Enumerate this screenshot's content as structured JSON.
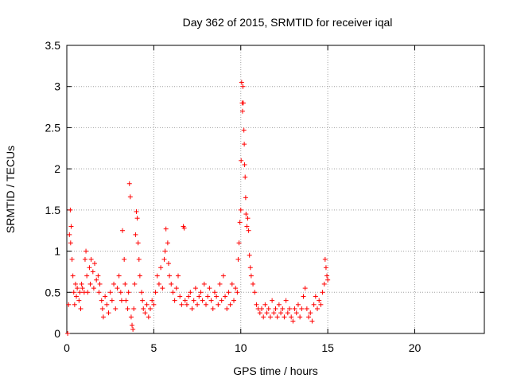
{
  "chart_data": {
    "type": "scatter",
    "title": "Day 362 of 2015, SRMTID for receiver iqal",
    "xlabel": "GPS time / hours",
    "ylabel": "SRMTID / TECUs",
    "xlim": [
      0,
      24
    ],
    "ylim": [
      0,
      3.5
    ],
    "xticks": [
      0,
      5,
      10,
      15,
      20
    ],
    "yticks": [
      0,
      0.5,
      1,
      1.5,
      2,
      2.5,
      3,
      3.5
    ],
    "grid": true,
    "marker": "+",
    "color": "#ff0000",
    "series": [
      {
        "name": "SRMTID",
        "points": [
          [
            0.05,
            0.0
          ],
          [
            0.1,
            0.35
          ],
          [
            0.15,
            1.2
          ],
          [
            0.2,
            1.5
          ],
          [
            0.22,
            1.1
          ],
          [
            0.25,
            1.3
          ],
          [
            0.3,
            0.9
          ],
          [
            0.35,
            0.7
          ],
          [
            0.4,
            0.5
          ],
          [
            0.45,
            0.35
          ],
          [
            0.5,
            0.6
          ],
          [
            0.55,
            0.45
          ],
          [
            0.6,
            0.55
          ],
          [
            0.7,
            0.4
          ],
          [
            0.75,
            0.5
          ],
          [
            0.8,
            0.3
          ],
          [
            0.85,
            0.6
          ],
          [
            0.9,
            0.55
          ],
          [
            1.0,
            0.5
          ],
          [
            1.05,
            0.9
          ],
          [
            1.1,
            1.0
          ],
          [
            1.15,
            0.7
          ],
          [
            1.2,
            0.5
          ],
          [
            1.3,
            0.8
          ],
          [
            1.35,
            0.6
          ],
          [
            1.4,
            0.9
          ],
          [
            1.5,
            0.75
          ],
          [
            1.55,
            0.55
          ],
          [
            1.6,
            0.85
          ],
          [
            1.7,
            0.65
          ],
          [
            1.8,
            0.7
          ],
          [
            1.85,
            0.5
          ],
          [
            1.9,
            0.6
          ],
          [
            2.0,
            0.4
          ],
          [
            2.05,
            0.3
          ],
          [
            2.1,
            0.2
          ],
          [
            2.2,
            0.45
          ],
          [
            2.3,
            0.35
          ],
          [
            2.4,
            0.25
          ],
          [
            2.5,
            0.5
          ],
          [
            2.6,
            0.4
          ],
          [
            2.7,
            0.6
          ],
          [
            2.8,
            0.3
          ],
          [
            2.9,
            0.55
          ],
          [
            3.0,
            0.7
          ],
          [
            3.1,
            0.5
          ],
          [
            3.15,
            0.4
          ],
          [
            3.2,
            1.25
          ],
          [
            3.3,
            0.9
          ],
          [
            3.35,
            0.6
          ],
          [
            3.4,
            0.4
          ],
          [
            3.5,
            0.3
          ],
          [
            3.55,
            0.5
          ],
          [
            3.6,
            1.82
          ],
          [
            3.65,
            1.66
          ],
          [
            3.7,
            0.2
          ],
          [
            3.75,
            0.1
          ],
          [
            3.8,
            0.05
          ],
          [
            3.85,
            0.3
          ],
          [
            3.9,
            0.6
          ],
          [
            3.95,
            1.2
          ],
          [
            4.0,
            1.48
          ],
          [
            4.05,
            1.4
          ],
          [
            4.1,
            1.1
          ],
          [
            4.15,
            0.9
          ],
          [
            4.2,
            0.7
          ],
          [
            4.3,
            0.5
          ],
          [
            4.35,
            0.4
          ],
          [
            4.4,
            0.3
          ],
          [
            4.5,
            0.25
          ],
          [
            4.6,
            0.35
          ],
          [
            4.7,
            0.2
          ],
          [
            4.8,
            0.3
          ],
          [
            4.9,
            0.4
          ],
          [
            5.0,
            0.35
          ],
          [
            5.1,
            0.5
          ],
          [
            5.2,
            0.7
          ],
          [
            5.3,
            0.6
          ],
          [
            5.4,
            0.8
          ],
          [
            5.5,
            0.55
          ],
          [
            5.6,
            0.9
          ],
          [
            5.65,
            1.0
          ],
          [
            5.7,
            1.27
          ],
          [
            5.8,
            1.1
          ],
          [
            5.85,
            0.85
          ],
          [
            5.9,
            0.7
          ],
          [
            6.0,
            0.6
          ],
          [
            6.1,
            0.5
          ],
          [
            6.2,
            0.4
          ],
          [
            6.3,
            0.55
          ],
          [
            6.4,
            0.7
          ],
          [
            6.5,
            0.45
          ],
          [
            6.6,
            0.35
          ],
          [
            6.7,
            1.3
          ],
          [
            6.75,
            1.28
          ],
          [
            6.8,
            0.4
          ],
          [
            6.9,
            0.35
          ],
          [
            7.0,
            0.45
          ],
          [
            7.1,
            0.5
          ],
          [
            7.2,
            0.3
          ],
          [
            7.3,
            0.4
          ],
          [
            7.4,
            0.55
          ],
          [
            7.5,
            0.35
          ],
          [
            7.6,
            0.45
          ],
          [
            7.7,
            0.5
          ],
          [
            7.8,
            0.4
          ],
          [
            7.9,
            0.6
          ],
          [
            8.0,
            0.35
          ],
          [
            8.1,
            0.45
          ],
          [
            8.2,
            0.55
          ],
          [
            8.3,
            0.4
          ],
          [
            8.4,
            0.3
          ],
          [
            8.5,
            0.5
          ],
          [
            8.6,
            0.45
          ],
          [
            8.7,
            0.35
          ],
          [
            8.8,
            0.6
          ],
          [
            8.9,
            0.4
          ],
          [
            9.0,
            0.7
          ],
          [
            9.1,
            0.45
          ],
          [
            9.2,
            0.3
          ],
          [
            9.3,
            0.5
          ],
          [
            9.4,
            0.35
          ],
          [
            9.5,
            0.6
          ],
          [
            9.6,
            0.4
          ],
          [
            9.7,
            0.55
          ],
          [
            9.8,
            0.5
          ],
          [
            9.85,
            0.9
          ],
          [
            9.9,
            1.1
          ],
          [
            9.95,
            1.35
          ],
          [
            10.0,
            1.5
          ],
          [
            10.02,
            2.1
          ],
          [
            10.05,
            3.05
          ],
          [
            10.08,
            2.8
          ],
          [
            10.1,
            2.7
          ],
          [
            10.12,
            3.0
          ],
          [
            10.15,
            2.8
          ],
          [
            10.18,
            2.47
          ],
          [
            10.2,
            2.3
          ],
          [
            10.22,
            2.05
          ],
          [
            10.25,
            1.9
          ],
          [
            10.28,
            1.65
          ],
          [
            10.3,
            1.45
          ],
          [
            10.35,
            1.3
          ],
          [
            10.4,
            1.4
          ],
          [
            10.45,
            1.25
          ],
          [
            10.5,
            0.95
          ],
          [
            10.55,
            0.8
          ],
          [
            10.6,
            0.7
          ],
          [
            10.7,
            0.6
          ],
          [
            10.8,
            0.5
          ],
          [
            10.9,
            0.35
          ],
          [
            11.0,
            0.3
          ],
          [
            11.1,
            0.25
          ],
          [
            11.2,
            0.3
          ],
          [
            11.3,
            0.2
          ],
          [
            11.4,
            0.35
          ],
          [
            11.5,
            0.25
          ],
          [
            11.6,
            0.3
          ],
          [
            11.7,
            0.2
          ],
          [
            11.8,
            0.4
          ],
          [
            11.9,
            0.25
          ],
          [
            12.0,
            0.3
          ],
          [
            12.1,
            0.2
          ],
          [
            12.2,
            0.35
          ],
          [
            12.3,
            0.25
          ],
          [
            12.4,
            0.3
          ],
          [
            12.5,
            0.2
          ],
          [
            12.6,
            0.4
          ],
          [
            12.7,
            0.25
          ],
          [
            12.8,
            0.3
          ],
          [
            12.9,
            0.2
          ],
          [
            13.0,
            0.15
          ],
          [
            13.1,
            0.3
          ],
          [
            13.2,
            0.25
          ],
          [
            13.3,
            0.35
          ],
          [
            13.4,
            0.2
          ],
          [
            13.5,
            0.3
          ],
          [
            13.6,
            0.45
          ],
          [
            13.7,
            0.55
          ],
          [
            13.8,
            0.3
          ],
          [
            13.9,
            0.2
          ],
          [
            14.0,
            0.25
          ],
          [
            14.1,
            0.15
          ],
          [
            14.2,
            0.35
          ],
          [
            14.3,
            0.45
          ],
          [
            14.4,
            0.3
          ],
          [
            14.5,
            0.4
          ],
          [
            14.6,
            0.35
          ],
          [
            14.7,
            0.5
          ],
          [
            14.8,
            0.6
          ],
          [
            14.85,
            0.9
          ],
          [
            14.9,
            0.8
          ],
          [
            14.95,
            0.7
          ],
          [
            15.0,
            0.65
          ]
        ]
      }
    ]
  }
}
